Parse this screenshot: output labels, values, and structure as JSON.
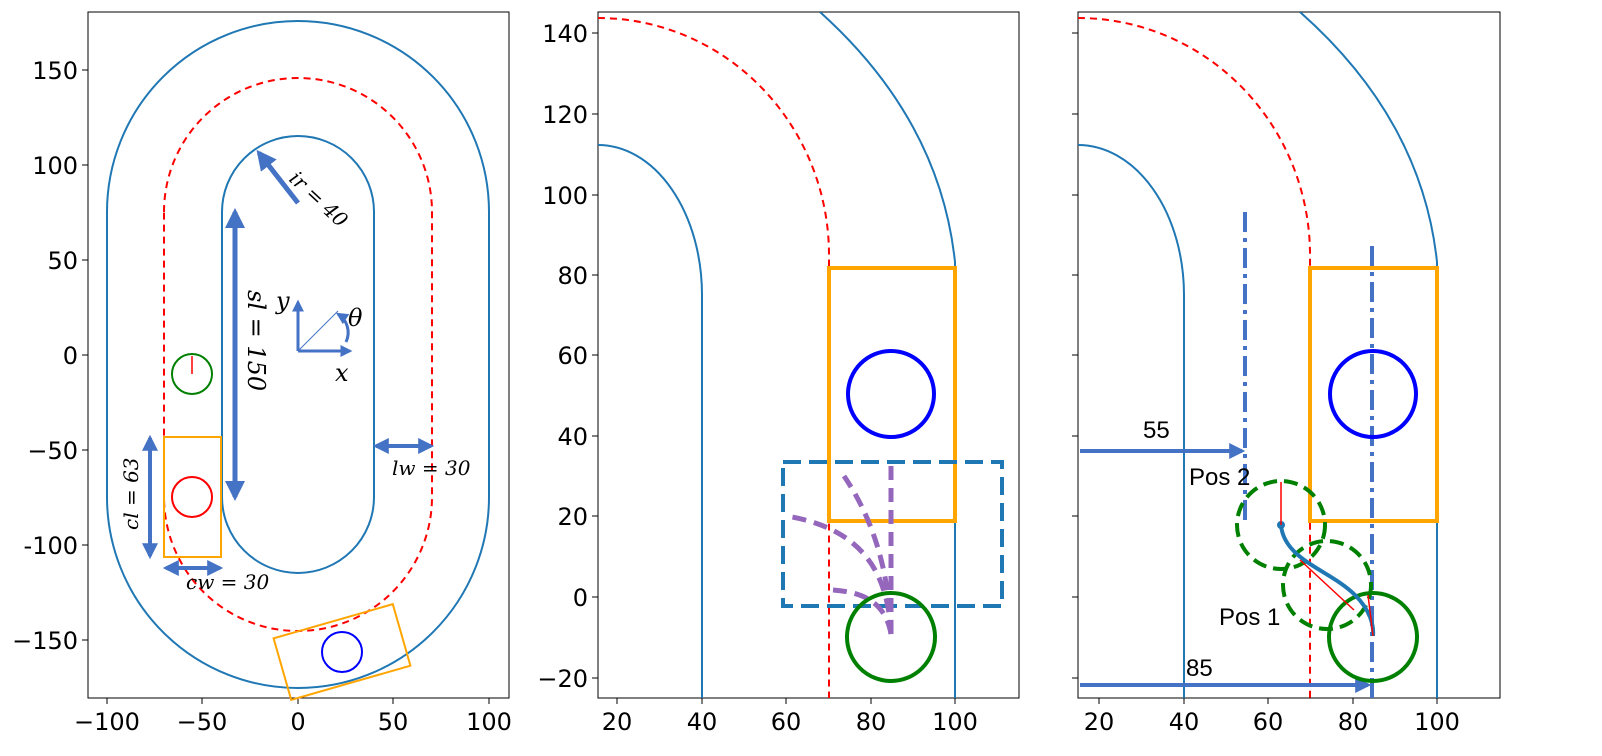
{
  "colors": {
    "track": "#1f77b4",
    "center_line": "#ff0000",
    "car_box": "#ffa500",
    "obstacle": "#0000ff",
    "ego": "#008000",
    "arrow": "#4472c4",
    "candidate": "#9467bd",
    "region": "#1f77b4"
  },
  "panels": [
    {
      "id": "track-overview",
      "xticks": [
        "−100",
        "−50",
        "0",
        "50",
        "100"
      ],
      "yticks": [
        "150",
        "100",
        "50",
        "0",
        "−50",
        "-100",
        "−150"
      ],
      "annotations": {
        "ir": "ir = 40",
        "sl": "sl = 150",
        "lw": "lw = 30",
        "cl": "cl = 63",
        "cw": "cw = 30",
        "axis_x": "x",
        "axis_y": "y",
        "theta": "θ"
      }
    },
    {
      "id": "candidate-paths",
      "xticks": [
        "20",
        "40",
        "60",
        "80",
        "100"
      ],
      "yticks": [
        "140",
        "120",
        "100",
        "80",
        "60",
        "40",
        "20",
        "0",
        "−20"
      ]
    },
    {
      "id": "lane-change",
      "xticks": [
        "20",
        "40",
        "60",
        "80",
        "100"
      ],
      "annotations": {
        "dist_55": "55",
        "dist_85": "85",
        "pos2": "Pos 2",
        "pos1": "Pos 1"
      }
    }
  ]
}
